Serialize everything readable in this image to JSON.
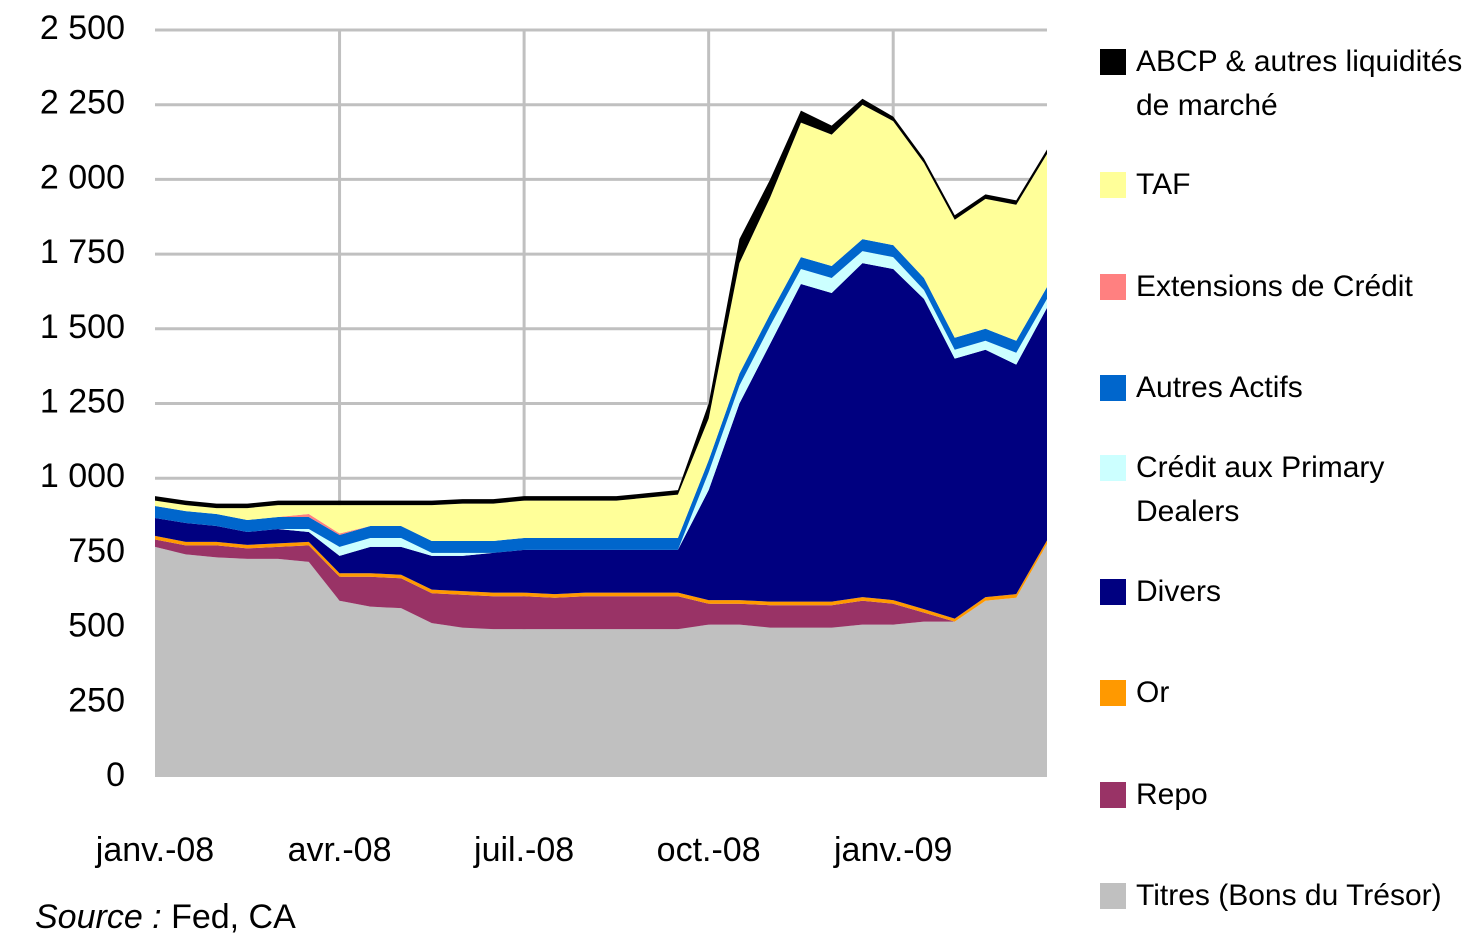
{
  "chart_data": {
    "type": "stacked_area",
    "categories": [
      "janv.-08",
      null,
      null,
      null,
      null,
      null,
      "avr.-08",
      null,
      null,
      null,
      null,
      null,
      "juil.-08",
      null,
      null,
      null,
      null,
      null,
      "oct.-08",
      null,
      null,
      null,
      null,
      null,
      "janv.-09",
      null,
      null,
      null,
      null,
      null
    ],
    "series": [
      {
        "name": "Titres (Bons du Trésor)",
        "color": "#c0c0c0",
        "values": [
          770,
          745,
          735,
          730,
          730,
          720,
          590,
          570,
          565,
          515,
          500,
          495,
          495,
          495,
          495,
          495,
          495,
          495,
          510,
          510,
          500,
          500,
          500,
          510,
          510,
          520,
          520,
          590,
          600,
          780
        ]
      },
      {
        "name": "Repo",
        "color": "#993366",
        "values": [
          25,
          30,
          40,
          35,
          40,
          55,
          80,
          100,
          100,
          100,
          110,
          110,
          110,
          105,
          110,
          110,
          110,
          110,
          70,
          70,
          75,
          75,
          75,
          80,
          70,
          30,
          0,
          0,
          0,
          0
        ]
      },
      {
        "name": "Or",
        "color": "#ff9900",
        "values": [
          12,
          12,
          12,
          12,
          12,
          12,
          12,
          12,
          12,
          12,
          12,
          12,
          12,
          12,
          12,
          12,
          12,
          12,
          12,
          12,
          12,
          12,
          12,
          12,
          12,
          12,
          10,
          12,
          12,
          12
        ]
      },
      {
        "name": "Divers",
        "color": "#000080",
        "values": [
          60,
          63,
          53,
          43,
          48,
          33,
          58,
          88,
          93,
          113,
          118,
          133,
          143,
          148,
          143,
          143,
          143,
          143,
          368,
          658,
          863,
          1063,
          1033,
          1118,
          1108,
          1038,
          870,
          828,
          768,
          778
        ]
      },
      {
        "name": "Crédit aux Primary Dealers",
        "color": "#ccffff",
        "values": [
          0,
          0,
          0,
          0,
          0,
          10,
          30,
          30,
          30,
          10,
          10,
          0,
          0,
          0,
          0,
          0,
          0,
          0,
          60,
          60,
          60,
          50,
          50,
          40,
          40,
          30,
          30,
          30,
          40,
          30
        ]
      },
      {
        "name": "Autres Actifs",
        "color": "#0066cc",
        "values": [
          40,
          40,
          40,
          40,
          40,
          40,
          40,
          40,
          40,
          40,
          40,
          40,
          40,
          40,
          40,
          40,
          40,
          40,
          40,
          40,
          40,
          40,
          40,
          40,
          40,
          40,
          40,
          40,
          40,
          40
        ]
      },
      {
        "name": "Extensions de Crédit",
        "color": "#ff8080",
        "values": [
          0,
          0,
          0,
          0,
          0,
          10,
          5,
          0,
          0,
          0,
          0,
          0,
          0,
          0,
          0,
          0,
          0,
          0,
          0,
          0,
          0,
          0,
          0,
          0,
          0,
          0,
          0,
          0,
          0,
          0
        ]
      },
      {
        "name": "TAF",
        "color": "#ffff99",
        "values": [
          18,
          20,
          20,
          40,
          40,
          30,
          95,
          70,
          70,
          120,
          125,
          125,
          125,
          125,
          125,
          125,
          135,
          145,
          140,
          370,
          390,
          450,
          440,
          450,
          415,
          385,
          395,
          435,
          455,
          445
        ]
      },
      {
        "name": "ABCP & autres liquidités de marché",
        "color": "#000000",
        "values": [
          15,
          15,
          15,
          15,
          15,
          15,
          15,
          15,
          15,
          15,
          15,
          15,
          15,
          15,
          15,
          15,
          15,
          15,
          50,
          80,
          60,
          40,
          30,
          20,
          15,
          15,
          15,
          15,
          15,
          15
        ]
      }
    ],
    "ylim": [
      0,
      2500
    ],
    "yticks": [
      0,
      250,
      500,
      750,
      {
        "value": 1000,
        "label": "1 000"
      },
      {
        "value": 1250,
        "label": "1 250"
      },
      {
        "value": 1500,
        "label": "1 500"
      },
      {
        "value": 1750,
        "label": "1 750"
      },
      {
        "value": 2000,
        "label": "2 000"
      },
      {
        "value": 2250,
        "label": "2 250"
      },
      {
        "value": 2500,
        "label": "2 500"
      }
    ],
    "grid": true,
    "legend": "right",
    "source_label": "Source :",
    "source": "Fed, CA"
  }
}
